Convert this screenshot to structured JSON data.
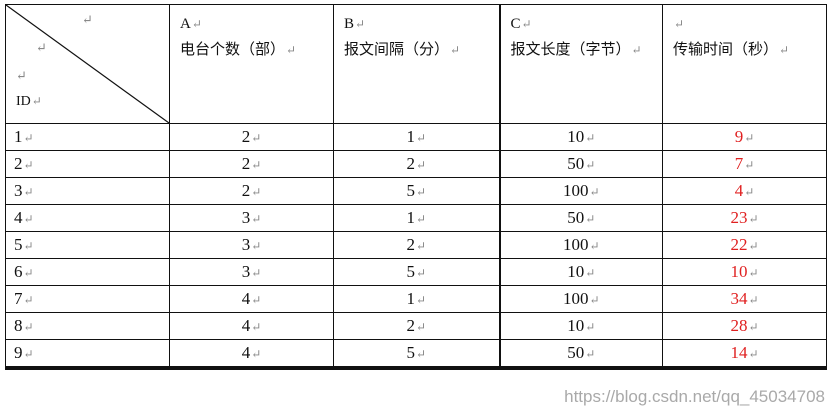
{
  "return_mark": "↵",
  "header": {
    "corner_label": "ID",
    "columns": [
      {
        "letter": "A",
        "title": "电台个数（部）"
      },
      {
        "letter": "B",
        "title": "报文间隔（分）"
      },
      {
        "letter": "C",
        "title": "报文长度（字节）"
      },
      {
        "letter": "",
        "title": "传输时间（秒）"
      }
    ]
  },
  "rows": [
    {
      "id": "1",
      "a": "2",
      "b": "1",
      "c": "10",
      "t": "9"
    },
    {
      "id": "2",
      "a": "2",
      "b": "2",
      "c": "50",
      "t": "7"
    },
    {
      "id": "3",
      "a": "2",
      "b": "5",
      "c": "100",
      "t": "4"
    },
    {
      "id": "4",
      "a": "3",
      "b": "1",
      "c": "50",
      "t": "23"
    },
    {
      "id": "5",
      "a": "3",
      "b": "2",
      "c": "100",
      "t": "22"
    },
    {
      "id": "6",
      "a": "3",
      "b": "5",
      "c": "10",
      "t": "10"
    },
    {
      "id": "7",
      "a": "4",
      "b": "1",
      "c": "100",
      "t": "34"
    },
    {
      "id": "8",
      "a": "4",
      "b": "2",
      "c": "10",
      "t": "28"
    },
    {
      "id": "9",
      "a": "4",
      "b": "5",
      "c": "50",
      "t": "14"
    }
  ],
  "colors": {
    "result": "#e02020",
    "text": "#111111"
  },
  "watermark": "https://blog.csdn.net/qq_45034708"
}
